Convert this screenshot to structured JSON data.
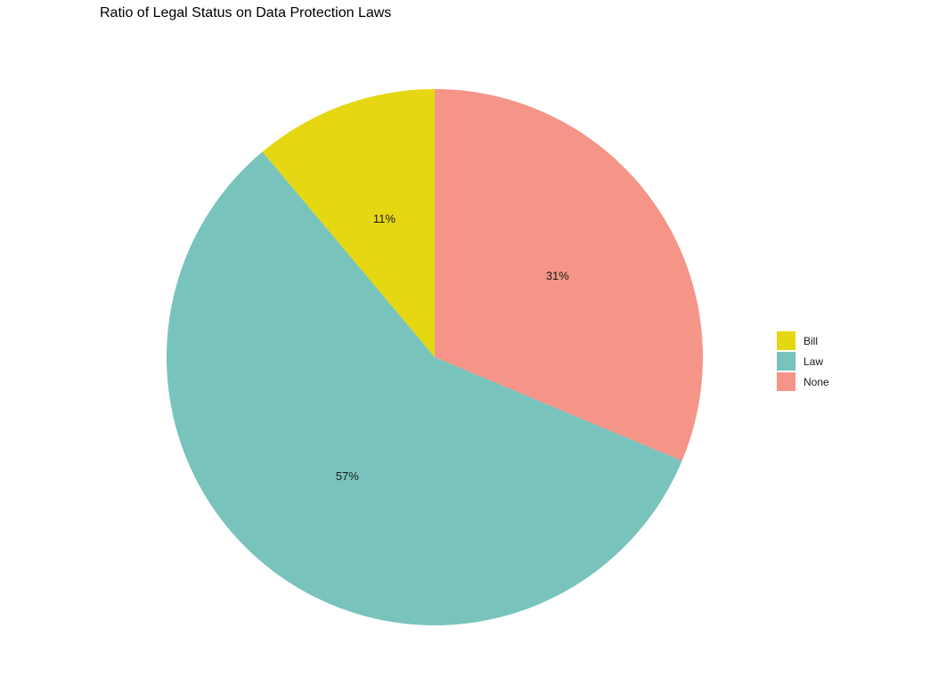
{
  "chart_data": {
    "type": "pie",
    "title": "Ratio of Legal Status on Data Protection Laws",
    "categories": [
      "Bill",
      "Law",
      "None"
    ],
    "values": [
      11,
      57,
      31
    ],
    "labels": [
      "11%",
      "57%",
      "31%"
    ],
    "colors": [
      "#E5D711",
      "#78C3BC",
      "#F49588"
    ],
    "legend_position": "right"
  }
}
